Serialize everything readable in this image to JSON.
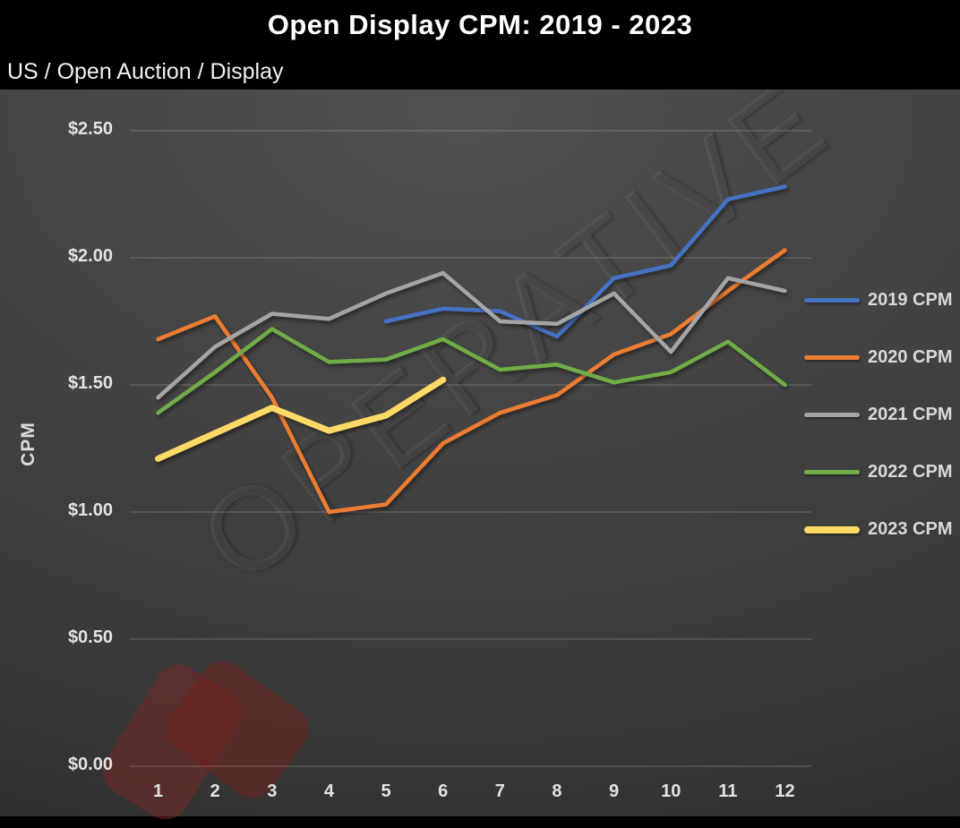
{
  "header": {
    "title": "Open Display CPM: 2019 - 2023",
    "subtitle": "US / Open Auction / Display"
  },
  "watermark": {
    "text": "OPERATIVE"
  },
  "y_axis": {
    "title": "CPM",
    "ticks": [
      {
        "label": "$2.50",
        "value": 2.5
      },
      {
        "label": "$2.00",
        "value": 2.0
      },
      {
        "label": "$1.50",
        "value": 1.5
      },
      {
        "label": "$1.00",
        "value": 1.0
      },
      {
        "label": "$0.50",
        "value": 0.5
      },
      {
        "label": "$0.00",
        "value": 0.0
      }
    ]
  },
  "x_axis": {
    "ticks": [
      "1",
      "2",
      "3",
      "4",
      "5",
      "6",
      "7",
      "8",
      "9",
      "10",
      "11",
      "12"
    ]
  },
  "legend": {
    "items": [
      {
        "label": "2019 CPM",
        "color": "#4472C4",
        "thick": false
      },
      {
        "label": "2020 CPM",
        "color": "#ED7D31",
        "thick": false
      },
      {
        "label": "2021 CPM",
        "color": "#A5A5A5",
        "thick": false
      },
      {
        "label": "2022 CPM",
        "color": "#70AD47",
        "thick": false
      },
      {
        "label": "2023 CPM",
        "color": "#FFD966",
        "thick": true
      }
    ]
  },
  "colors": {
    "header_background": "#000000",
    "plot_background": "#3F3F3F",
    "gridline": "rgba(255,255,255,0.20)",
    "text": "#E3E3E3"
  },
  "chart_data": {
    "type": "line",
    "title": "Open Display CPM: 2019 - 2023",
    "subtitle": "US / Open Auction / Display",
    "xlabel": "",
    "ylabel": "CPM",
    "x": [
      1,
      2,
      3,
      4,
      5,
      6,
      7,
      8,
      9,
      10,
      11,
      12
    ],
    "ylim": [
      0,
      2.5
    ],
    "ytick_step": 0.5,
    "ytick_format": "$X.XX",
    "grid": true,
    "legend_position": "right",
    "series": [
      {
        "name": "2019 CPM",
        "color": "#4472C4",
        "width": 4.5,
        "values": [
          null,
          null,
          null,
          null,
          1.75,
          1.8,
          1.79,
          1.69,
          1.92,
          1.97,
          2.23,
          2.28
        ]
      },
      {
        "name": "2020 CPM",
        "color": "#ED7D31",
        "width": 4.5,
        "values": [
          1.68,
          1.77,
          1.45,
          1.0,
          1.03,
          1.27,
          1.39,
          1.46,
          1.62,
          1.7,
          1.87,
          2.03
        ]
      },
      {
        "name": "2021 CPM",
        "color": "#A5A5A5",
        "width": 4.5,
        "values": [
          1.45,
          1.65,
          1.78,
          1.76,
          1.86,
          1.94,
          1.75,
          1.74,
          1.86,
          1.63,
          1.92,
          1.87
        ]
      },
      {
        "name": "2022 CPM",
        "color": "#70AD47",
        "width": 4.5,
        "values": [
          1.39,
          1.55,
          1.72,
          1.59,
          1.6,
          1.68,
          1.56,
          1.58,
          1.51,
          1.55,
          1.67,
          1.5
        ]
      },
      {
        "name": "2023 CPM",
        "color": "#FFD966",
        "width": 7,
        "values": [
          1.21,
          1.31,
          1.41,
          1.32,
          1.38,
          1.52,
          null,
          null,
          null,
          null,
          null,
          null
        ]
      }
    ]
  }
}
